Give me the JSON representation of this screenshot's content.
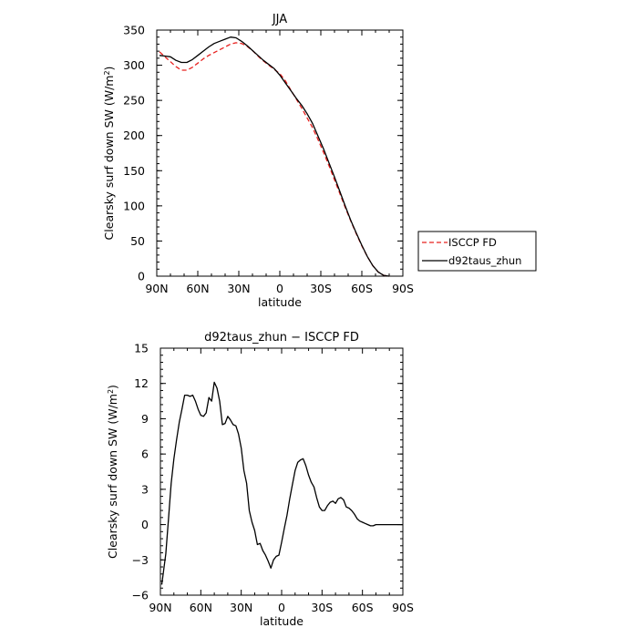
{
  "chart_data": [
    {
      "type": "line",
      "title": "JJA",
      "xlabel": "latitude",
      "ylabel": "Clearsky surf down SW (W/m²)",
      "xlim": [
        90,
        -90
      ],
      "ylim": [
        0,
        350
      ],
      "x_ticks": [
        90,
        60,
        30,
        0,
        -30,
        -60,
        -90
      ],
      "x_tick_labels": [
        "90N",
        "60N",
        "30N",
        "0",
        "30S",
        "60S",
        "90S"
      ],
      "y_ticks": [
        0,
        50,
        100,
        150,
        200,
        250,
        300,
        350
      ],
      "y_tick_labels": [
        "0",
        "50",
        "100",
        "150",
        "200",
        "250",
        "300",
        "350"
      ],
      "grid": false,
      "legend": "right",
      "series": [
        {
          "name": "ISCCP FD",
          "color": "#e8201e",
          "dash": "dashed",
          "x": [
            88,
            84,
            80,
            76,
            72,
            68,
            64,
            60,
            56,
            52,
            48,
            44,
            40,
            36,
            32,
            28,
            24,
            20,
            16,
            12,
            8,
            4,
            0,
            -4,
            -8,
            -12,
            -16,
            -20,
            -24,
            -28,
            -32,
            -36,
            -40,
            -44,
            -48,
            -52,
            -56,
            -60,
            -64,
            -68,
            -72,
            -76,
            -80
          ],
          "y": [
            319,
            312,
            305,
            298,
            293,
            293,
            297,
            303,
            309,
            314,
            318,
            322,
            326,
            330,
            332,
            331,
            327,
            321,
            313,
            306,
            300,
            294,
            288,
            278,
            265,
            252,
            239,
            225,
            211,
            194,
            176,
            157,
            137,
            117,
            97,
            78,
            60,
            43,
            28,
            15,
            6,
            1,
            0
          ]
        },
        {
          "name": "d92taus_zhun",
          "color": "#000000",
          "dash": "solid",
          "x": [
            88,
            84,
            80,
            76,
            72,
            68,
            64,
            60,
            56,
            52,
            48,
            44,
            40,
            36,
            32,
            28,
            24,
            20,
            16,
            12,
            8,
            4,
            0,
            -4,
            -8,
            -12,
            -16,
            -20,
            -24,
            -28,
            -32,
            -36,
            -40,
            -44,
            -48,
            -52,
            -56,
            -60,
            -64,
            -68,
            -72,
            -76,
            -80
          ],
          "y": [
            314,
            313,
            312,
            307,
            304,
            304,
            308,
            314,
            320,
            326,
            331,
            334,
            337,
            340,
            339,
            334,
            328,
            321,
            314,
            307,
            301,
            295,
            286,
            275,
            264,
            253,
            243,
            231,
            217,
            199,
            181,
            161,
            141,
            120,
            99,
            79,
            61,
            44,
            28,
            15,
            6,
            1,
            0
          ]
        }
      ]
    },
    {
      "type": "line",
      "title": "d92taus_zhun − ISCCP FD",
      "xlabel": "latitude",
      "ylabel": "Clearsky surf down SW (W/m²)",
      "xlim": [
        90,
        -90
      ],
      "ylim": [
        -6,
        15
      ],
      "x_ticks": [
        90,
        60,
        30,
        0,
        -30,
        -60,
        -90
      ],
      "x_tick_labels": [
        "90N",
        "60N",
        "30N",
        "0",
        "30S",
        "60S",
        "90S"
      ],
      "y_ticks": [
        -6,
        -3,
        0,
        3,
        6,
        9,
        12,
        15
      ],
      "y_tick_labels": [
        "−6",
        "−3",
        "0",
        "3",
        "6",
        "9",
        "12",
        "15"
      ],
      "grid": false,
      "series": [
        {
          "color": "#000000",
          "dash": "solid",
          "x": [
            89,
            86,
            84,
            82,
            80,
            78,
            76,
            74,
            72,
            70,
            68,
            66,
            64,
            62,
            60,
            58,
            56,
            54,
            52,
            50,
            48,
            46,
            44,
            42,
            40,
            38,
            36,
            34,
            32,
            30,
            28,
            26,
            24,
            22,
            20,
            18,
            16,
            14,
            12,
            10,
            8,
            6,
            4,
            2,
            0,
            -2,
            -4,
            -6,
            -8,
            -10,
            -12,
            -14,
            -16,
            -18,
            -20,
            -22,
            -24,
            -26,
            -28,
            -30,
            -32,
            -34,
            -36,
            -38,
            -40,
            -42,
            -44,
            -46,
            -48,
            -50,
            -52,
            -54,
            -56,
            -58,
            -60,
            -62,
            -64,
            -66,
            -68,
            -70,
            -72,
            -74,
            -76,
            -78,
            -80,
            -85,
            -90
          ],
          "y": [
            -5.1,
            -2.5,
            0.5,
            3.5,
            5.6,
            7.2,
            8.7,
            9.8,
            11.0,
            11.0,
            10.9,
            11.0,
            10.5,
            9.8,
            9.3,
            9.2,
            9.5,
            10.8,
            10.5,
            12.1,
            11.6,
            10.5,
            8.5,
            8.6,
            9.2,
            8.9,
            8.5,
            8.4,
            7.7,
            6.5,
            4.6,
            3.5,
            1.2,
            0.2,
            -0.5,
            -1.7,
            -1.6,
            -2.2,
            -2.6,
            -3.1,
            -3.7,
            -3.0,
            -2.7,
            -2.6,
            -1.5,
            -0.3,
            0.8,
            2.2,
            3.4,
            4.6,
            5.3,
            5.5,
            5.6,
            5.0,
            4.2,
            3.6,
            3.2,
            2.3,
            1.5,
            1.2,
            1.2,
            1.6,
            1.9,
            2.0,
            1.8,
            2.2,
            2.3,
            2.1,
            1.5,
            1.4,
            1.2,
            0.9,
            0.5,
            0.3,
            0.2,
            0.1,
            0.0,
            -0.1,
            -0.1,
            0.0,
            0.0,
            0.0,
            0.0,
            0.0,
            0.0,
            0.0,
            0.0
          ]
        }
      ]
    }
  ]
}
